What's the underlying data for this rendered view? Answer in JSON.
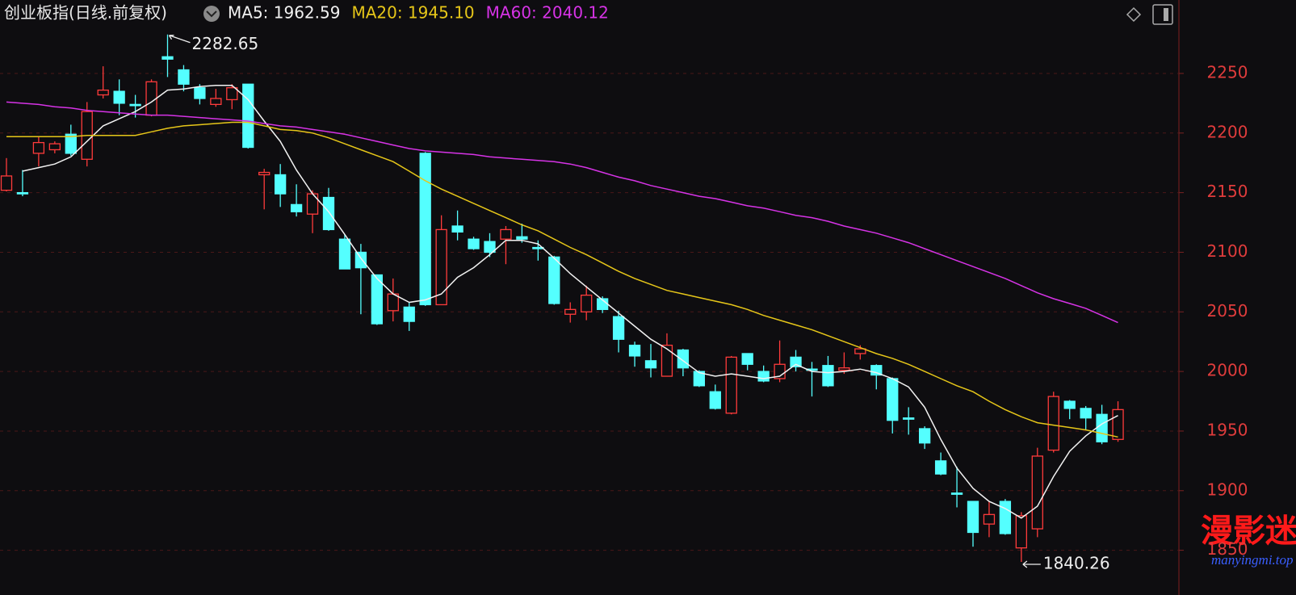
{
  "chart_data": {
    "type": "candlestick",
    "title": "创业板指(日线.前复权)",
    "open": [
      2152,
      2150,
      2183,
      2186,
      2199,
      2178,
      2232,
      2235,
      2224,
      2215,
      2264,
      2253,
      2238,
      2224,
      2228,
      2241,
      2165,
      2165,
      2140,
      2132,
      2146,
      2111,
      2100,
      2081,
      2051,
      2054,
      2183,
      2056,
      2122,
      2111,
      2109,
      2111,
      2113,
      2104,
      2096,
      2048,
      2050,
      2061,
      2046,
      2022,
      2009,
      1996,
      2018,
      2000,
      1983,
      1965,
      2015,
      2000,
      1994,
      2012,
      2002,
      2005,
      2001,
      2015,
      2005,
      1994,
      1961,
      1952,
      1925,
      1898,
      1891,
      1872,
      1891,
      1852,
      1868,
      1934,
      1975,
      1969,
      1964,
      1943
    ],
    "high": [
      2179,
      2169,
      2197,
      2193,
      2207,
      2226,
      2256,
      2245,
      2232,
      2245,
      2282.65,
      2257,
      2241,
      2237,
      2241,
      2241,
      2170,
      2174,
      2157,
      2152,
      2154,
      2115,
      2107,
      2081,
      2078,
      2058,
      2184,
      2131,
      2135,
      2113,
      2116,
      2122,
      2124,
      2110,
      2097,
      2058,
      2072,
      2063,
      2051,
      2025,
      2023,
      2032,
      2019,
      2001,
      1989,
      2013,
      2015,
      2005,
      2026,
      2018,
      2008,
      2013,
      2016,
      2022,
      2006,
      1995,
      1970,
      1954,
      1932,
      1920,
      1891,
      1891,
      1893,
      1882,
      1936,
      1983,
      1976,
      1971,
      1972,
      1975
    ],
    "low": [
      2151,
      2147,
      2172,
      2183,
      2181,
      2172,
      2229,
      2215,
      2213,
      2214,
      2247,
      2235,
      2224,
      2222,
      2220,
      2187,
      2136,
      2138,
      2130,
      2116,
      2118,
      2086,
      2048,
      2039,
      2042,
      2034,
      2055,
      2056,
      2110,
      2102,
      2096,
      2090,
      2108,
      2093,
      2056,
      2041,
      2043,
      2049,
      2016,
      2004,
      1995,
      1996,
      1996,
      1987,
      1968,
      1964,
      2001,
      1991,
      1991,
      2000,
      1979,
      1987,
      1998,
      2010,
      1985,
      1948,
      1947,
      1935,
      1913,
      1886,
      1853,
      1861,
      1863,
      1840.26,
      1861,
      1932,
      1960,
      1951,
      1939,
      1941
    ],
    "close": [
      2164,
      2149,
      2192,
      2191,
      2183,
      2218,
      2236,
      2225,
      2223,
      2243,
      2262,
      2241,
      2229,
      2229,
      2238,
      2188,
      2167,
      2149,
      2134,
      2149,
      2119,
      2086,
      2087,
      2040,
      2065,
      2042,
      2056,
      2119,
      2117,
      2103,
      2100,
      2119,
      2111,
      2103,
      2057,
      2052,
      2064,
      2052,
      2027,
      2013,
      2003,
      2022,
      2003,
      1988,
      1969,
      2012,
      2006,
      1992,
      2006,
      2004,
      2001,
      1988,
      2003,
      2019,
      1997,
      1959,
      1960,
      1940,
      1914,
      1897,
      1865,
      1880,
      1864,
      1879,
      1929,
      1979,
      1969,
      1961,
      1941,
      1968
    ],
    "up_color": "#ff3b3b",
    "down_color": "#54ffff",
    "series": [
      {
        "name": "MA5: 1962.59",
        "color": "#f2f2f2",
        "values": [
          null,
          2168,
          2171,
          2174,
          2180,
          2193,
          2206,
          2212,
          2218,
          2226,
          2236,
          2237,
          2239,
          2240,
          2240,
          2228,
          2210,
          2193,
          2169,
          2149,
          2134,
          2115,
          2095,
          2078,
          2065,
          2058,
          2060,
          2065,
          2079,
          2087,
          2098,
          2110,
          2110,
          2107,
          2095,
          2082,
          2071,
          2060,
          2049,
          2038,
          2027,
          2019,
          2009,
          1999,
          1996,
          1998,
          1996,
          1994,
          1996,
          2006,
          2000,
          1999,
          2000,
          2002,
          1999,
          1994,
          1987,
          1970,
          1943,
          1919,
          1902,
          1891,
          1885,
          1877,
          1887,
          1912,
          1933,
          1946,
          1956,
          1963
        ]
      },
      {
        "name": "MA20: 1945.10",
        "color": "#e6c619",
        "values": [
          2197,
          2197,
          2197,
          2197,
          2197,
          2198,
          2198,
          2198,
          2198,
          2201,
          2204,
          2206,
          2207,
          2208,
          2209,
          2209,
          2206,
          2203,
          2202,
          2200,
          2196,
          2191,
          2186,
          2181,
          2176,
          2168,
          2160,
          2153,
          2147,
          2141,
          2135,
          2129,
          2123,
          2118,
          2111,
          2104,
          2098,
          2091,
          2084,
          2078,
          2073,
          2068,
          2065,
          2062,
          2059,
          2056,
          2052,
          2047,
          2043,
          2039,
          2035,
          2030,
          2025,
          2020,
          2015,
          2011,
          2006,
          2000,
          1994,
          1988,
          1983,
          1975,
          1968,
          1962,
          1957,
          1955,
          1953,
          1951,
          1948,
          1945
        ]
      },
      {
        "name": "MA60: 2040.12",
        "color": "#d633e6",
        "values": [
          2226,
          2225,
          2224,
          2222,
          2221,
          2219,
          2218,
          2217,
          2216,
          2215,
          2215,
          2214,
          2213,
          2212,
          2211,
          2210,
          2208,
          2206,
          2205,
          2203,
          2201,
          2199,
          2196,
          2193,
          2190,
          2187,
          2185,
          2184,
          2183,
          2182,
          2180,
          2179,
          2178,
          2177,
          2176,
          2174,
          2171,
          2167,
          2163,
          2160,
          2156,
          2153,
          2150,
          2147,
          2145,
          2142,
          2139,
          2137,
          2134,
          2131,
          2129,
          2126,
          2122,
          2119,
          2116,
          2112,
          2108,
          2103,
          2098,
          2093,
          2088,
          2083,
          2078,
          2072,
          2066,
          2061,
          2057,
          2053,
          2047,
          2041
        ]
      }
    ],
    "annotations": [
      {
        "label": "2282.65"
      },
      {
        "label": "1840.26"
      }
    ],
    "ylim": [
      1824,
      2311.6
    ],
    "yticks": [
      1850,
      1900,
      1950,
      2000,
      2050,
      2100,
      2150,
      2200,
      2250
    ],
    "grid": true,
    "watermark": {
      "title": "漫影迷社区",
      "url": "manyingmi.top"
    }
  }
}
